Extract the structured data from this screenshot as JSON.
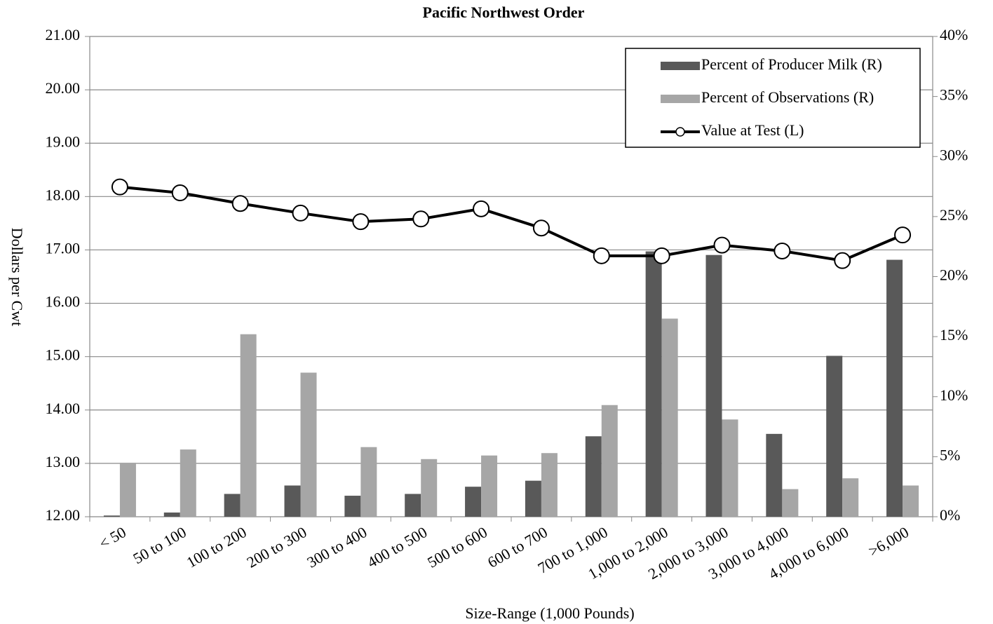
{
  "chart_data": {
    "type": "bar_line",
    "title": "Pacific Northwest Order",
    "x_label": "Size-Range (1,000 Pounds)",
    "y_label": "Dollars per Cwt",
    "categories": [
      "< 50",
      "50 to 100",
      "100 to 200",
      "200 to 300",
      "300 to 400",
      "400 to 500",
      "500 to 600",
      "600 to 700",
      "700 to 1,000",
      "1,000 to 2,000",
      "2,000 to 3,000",
      "3,000 to 4,000",
      "4,000 to 6,000",
      ">6,000"
    ],
    "series": [
      {
        "name": "Percent of Producer Milk (R)",
        "type": "bar",
        "axis": "y2",
        "color": "#595959",
        "values": [
          0.1,
          0.35,
          1.9,
          2.6,
          1.75,
          1.9,
          2.5,
          3.0,
          6.7,
          22.1,
          21.8,
          6.9,
          13.4,
          21.4
        ]
      },
      {
        "name": "Percent of Observations (R)",
        "type": "bar",
        "axis": "y2",
        "color": "#a6a6a6",
        "values": [
          4.5,
          5.6,
          15.2,
          12.0,
          5.8,
          4.8,
          5.1,
          5.3,
          9.3,
          16.5,
          8.1,
          2.3,
          3.2,
          2.6
        ]
      },
      {
        "name": "Value at Test (L)",
        "type": "line",
        "color": "#000000",
        "values": [
          18.18,
          18.07,
          17.87,
          17.69,
          17.53,
          17.58,
          17.77,
          17.41,
          16.89,
          16.89,
          17.09,
          16.98,
          16.8,
          17.28
        ]
      }
    ],
    "ylim": [
      12,
      21
    ],
    "yticks": [
      {
        "value": 12,
        "label": "12.00"
      },
      {
        "value": 13,
        "label": "13.00"
      },
      {
        "value": 14,
        "label": "14.00"
      },
      {
        "value": 15,
        "label": "15.00"
      },
      {
        "value": 16,
        "label": "16.00"
      },
      {
        "value": 17,
        "label": "17.00"
      },
      {
        "value": 18,
        "label": "18.00"
      },
      {
        "value": 19,
        "label": "19.00"
      },
      {
        "value": 20,
        "label": "20.00"
      },
      {
        "value": 21,
        "label": "21.00"
      }
    ],
    "y2lim": [
      0,
      40
    ],
    "y2ticks": [
      {
        "value": 0,
        "label": "0%"
      },
      {
        "value": 5,
        "label": "5%"
      },
      {
        "value": 10,
        "label": "10%"
      },
      {
        "value": 15,
        "label": "15%"
      },
      {
        "value": 20,
        "label": "20%"
      },
      {
        "value": 25,
        "label": "25%"
      },
      {
        "value": 30,
        "label": "30%"
      },
      {
        "value": 35,
        "label": "35%"
      },
      {
        "value": 40,
        "label": "40%"
      }
    ],
    "grid": true,
    "legend": "upper right"
  }
}
